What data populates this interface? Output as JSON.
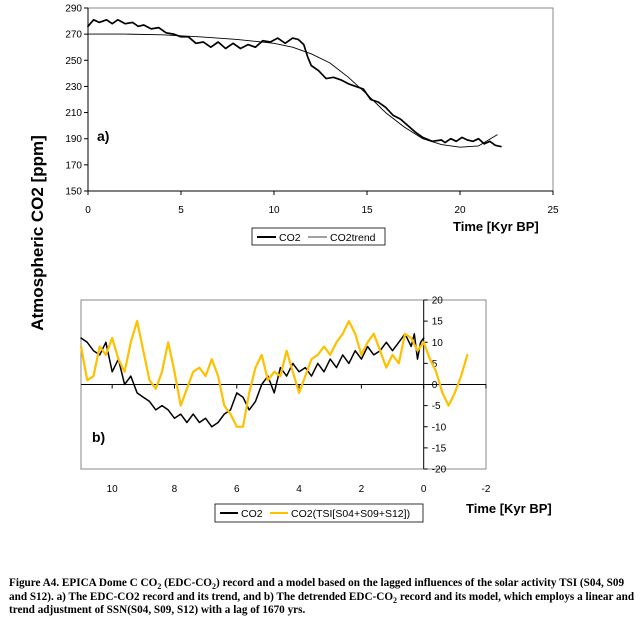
{
  "chart_data": [
    {
      "type": "line",
      "panel_label": "a)",
      "ylabel": "Atmospheric CO2 [ppm]",
      "xlabel": "Time [Kyr BP]",
      "xlim": [
        0,
        25
      ],
      "ylim": [
        150,
        290
      ],
      "xticks": [
        0,
        5,
        10,
        15,
        20,
        25
      ],
      "yticks": [
        150,
        170,
        190,
        210,
        230,
        250,
        270,
        290
      ],
      "legend": [
        "CO2",
        "CO2trend"
      ],
      "series": [
        {
          "name": "CO2",
          "color": "#000000",
          "points": [
            [
              0,
              276
            ],
            [
              0.3,
              281
            ],
            [
              0.6,
              279
            ],
            [
              1.0,
              281
            ],
            [
              1.3,
              278
            ],
            [
              1.6,
              281
            ],
            [
              2.0,
              278
            ],
            [
              2.4,
              279
            ],
            [
              2.7,
              276
            ],
            [
              3.0,
              277
            ],
            [
              3.4,
              274
            ],
            [
              3.8,
              275
            ],
            [
              4.2,
              271
            ],
            [
              4.6,
              270
            ],
            [
              5.0,
              268
            ],
            [
              5.4,
              268
            ],
            [
              5.8,
              263
            ],
            [
              6.2,
              264
            ],
            [
              6.6,
              260
            ],
            [
              7.0,
              264
            ],
            [
              7.4,
              259
            ],
            [
              7.8,
              263
            ],
            [
              8.2,
              259
            ],
            [
              8.6,
              262
            ],
            [
              9.0,
              260
            ],
            [
              9.4,
              265
            ],
            [
              9.8,
              264
            ],
            [
              10.2,
              267
            ],
            [
              10.6,
              263
            ],
            [
              11.0,
              267
            ],
            [
              11.3,
              266
            ],
            [
              11.6,
              262
            ],
            [
              11.8,
              253
            ],
            [
              12.0,
              246
            ],
            [
              12.4,
              242
            ],
            [
              12.8,
              236
            ],
            [
              13.2,
              237
            ],
            [
              13.6,
              235
            ],
            [
              14.0,
              232
            ],
            [
              14.4,
              230
            ],
            [
              14.8,
              228
            ],
            [
              15.2,
              220
            ],
            [
              15.6,
              218
            ],
            [
              16.0,
              214
            ],
            [
              16.4,
              208
            ],
            [
              16.8,
              205
            ],
            [
              17.2,
              200
            ],
            [
              17.6,
              195
            ],
            [
              18.0,
              191
            ],
            [
              18.5,
              188
            ],
            [
              19.0,
              189
            ],
            [
              19.2,
              187
            ],
            [
              19.5,
              190
            ],
            [
              19.8,
              188
            ],
            [
              20.1,
              191
            ],
            [
              20.4,
              189
            ],
            [
              20.7,
              188
            ],
            [
              21.0,
              190
            ],
            [
              21.3,
              186
            ],
            [
              21.6,
              188
            ],
            [
              21.9,
              185
            ],
            [
              22.2,
              184
            ]
          ]
        },
        {
          "name": "CO2trend",
          "color": "#000000",
          "points": [
            [
              0,
              270
            ],
            [
              2,
              270
            ],
            [
              4,
              269.5
            ],
            [
              6,
              268
            ],
            [
              8,
              266
            ],
            [
              10,
              263
            ],
            [
              11,
              260
            ],
            [
              12,
              255
            ],
            [
              13,
              248
            ],
            [
              14,
              237
            ],
            [
              15,
              224
            ],
            [
              16,
              210
            ],
            [
              17,
              199
            ],
            [
              18,
              190
            ],
            [
              19,
              185.5
            ],
            [
              20,
              183.5
            ],
            [
              21,
              184.5
            ],
            [
              22,
              193
            ]
          ]
        }
      ]
    },
    {
      "type": "line",
      "panel_label": "b)",
      "xlabel": "Time [Kyr BP]",
      "xlim": [
        11,
        -2
      ],
      "ylim": [
        -20,
        20
      ],
      "xticks": [
        10,
        8,
        6,
        4,
        2,
        0,
        -2
      ],
      "yticks": [
        20,
        15,
        10,
        5,
        0,
        -5,
        -10,
        -15,
        -20
      ],
      "legend": [
        "CO2",
        "CO2(TSI[S04+S09+S12])"
      ],
      "series": [
        {
          "name": "CO2",
          "color": "#000000",
          "points": [
            [
              11,
              11
            ],
            [
              10.8,
              10
            ],
            [
              10.6,
              8
            ],
            [
              10.4,
              7
            ],
            [
              10.2,
              10
            ],
            [
              10.0,
              3
            ],
            [
              9.8,
              6
            ],
            [
              9.6,
              0
            ],
            [
              9.4,
              2
            ],
            [
              9.2,
              -2
            ],
            [
              9.0,
              -3
            ],
            [
              8.8,
              -4
            ],
            [
              8.6,
              -6
            ],
            [
              8.4,
              -5
            ],
            [
              8.2,
              -6
            ],
            [
              8.0,
              -8
            ],
            [
              7.8,
              -7
            ],
            [
              7.6,
              -9
            ],
            [
              7.4,
              -7
            ],
            [
              7.2,
              -9
            ],
            [
              7.0,
              -8
            ],
            [
              6.8,
              -10
            ],
            [
              6.6,
              -9
            ],
            [
              6.4,
              -7
            ],
            [
              6.2,
              -6
            ],
            [
              6.0,
              -2
            ],
            [
              5.8,
              -3
            ],
            [
              5.6,
              -6
            ],
            [
              5.4,
              -4
            ],
            [
              5.2,
              0
            ],
            [
              5.0,
              2
            ],
            [
              4.8,
              -2
            ],
            [
              4.6,
              4
            ],
            [
              4.4,
              2
            ],
            [
              4.2,
              5
            ],
            [
              4.0,
              3
            ],
            [
              3.8,
              4
            ],
            [
              3.6,
              2
            ],
            [
              3.4,
              5
            ],
            [
              3.2,
              3
            ],
            [
              3.0,
              6
            ],
            [
              2.8,
              4
            ],
            [
              2.6,
              7
            ],
            [
              2.4,
              5
            ],
            [
              2.2,
              8
            ],
            [
              2.0,
              6
            ],
            [
              1.8,
              9
            ],
            [
              1.6,
              7
            ],
            [
              1.4,
              8
            ],
            [
              1.2,
              10
            ],
            [
              1.0,
              8
            ],
            [
              0.8,
              10
            ],
            [
              0.6,
              12
            ],
            [
              0.4,
              9
            ],
            [
              0.3,
              12
            ],
            [
              0.2,
              6
            ],
            [
              0.1,
              10
            ],
            [
              0,
              11
            ]
          ]
        },
        {
          "name": "CO2(TSI[S04+S09+S12])",
          "color": "#FFC000",
          "points": [
            [
              11,
              9
            ],
            [
              10.8,
              1
            ],
            [
              10.6,
              2
            ],
            [
              10.4,
              9
            ],
            [
              10.2,
              7
            ],
            [
              10.0,
              11
            ],
            [
              9.8,
              6
            ],
            [
              9.6,
              3
            ],
            [
              9.4,
              10
            ],
            [
              9.2,
              15
            ],
            [
              9.0,
              8
            ],
            [
              8.8,
              1
            ],
            [
              8.6,
              -1
            ],
            [
              8.4,
              3
            ],
            [
              8.2,
              10
            ],
            [
              8.0,
              3
            ],
            [
              7.8,
              -5
            ],
            [
              7.6,
              -1
            ],
            [
              7.4,
              3
            ],
            [
              7.2,
              4
            ],
            [
              7.0,
              2
            ],
            [
              6.8,
              6
            ],
            [
              6.6,
              2
            ],
            [
              6.4,
              -5
            ],
            [
              6.2,
              -7
            ],
            [
              6.0,
              -10
            ],
            [
              5.8,
              -10
            ],
            [
              5.6,
              -2
            ],
            [
              5.4,
              4
            ],
            [
              5.2,
              7
            ],
            [
              5.0,
              1
            ],
            [
              4.8,
              3
            ],
            [
              4.6,
              2
            ],
            [
              4.4,
              8
            ],
            [
              4.2,
              3
            ],
            [
              4.0,
              -2
            ],
            [
              3.8,
              2
            ],
            [
              3.6,
              6
            ],
            [
              3.4,
              7
            ],
            [
              3.2,
              9
            ],
            [
              3.0,
              7
            ],
            [
              2.8,
              10
            ],
            [
              2.6,
              12
            ],
            [
              2.4,
              15
            ],
            [
              2.2,
              12
            ],
            [
              2.0,
              7
            ],
            [
              1.8,
              10
            ],
            [
              1.6,
              12
            ],
            [
              1.4,
              8
            ],
            [
              1.2,
              4
            ],
            [
              1.0,
              7
            ],
            [
              0.8,
              5
            ],
            [
              0.6,
              12
            ],
            [
              0.4,
              11
            ],
            [
              0.2,
              8
            ],
            [
              0,
              10
            ],
            [
              -0.2,
              6
            ],
            [
              -0.4,
              3
            ],
            [
              -0.6,
              -2
            ],
            [
              -0.8,
              -5
            ],
            [
              -1.0,
              -2
            ],
            [
              -1.2,
              2
            ],
            [
              -1.4,
              7
            ]
          ]
        }
      ]
    }
  ],
  "caption": {
    "p1": "Figure A4. EPICA Dome C CO",
    "p2": " (EDC-CO",
    "p3": ") record and a model based on the lagged influences of the solar activity TSI (S04, S09 and S12). a) The EDC-CO2 record and its trend, and b) The detrended EDC-CO",
    "p4": " record and its model, which employs a linear and trend adjustment of SSN(S04, S09, S12) with a lag of 1670 yrs.",
    "sub": "2"
  }
}
